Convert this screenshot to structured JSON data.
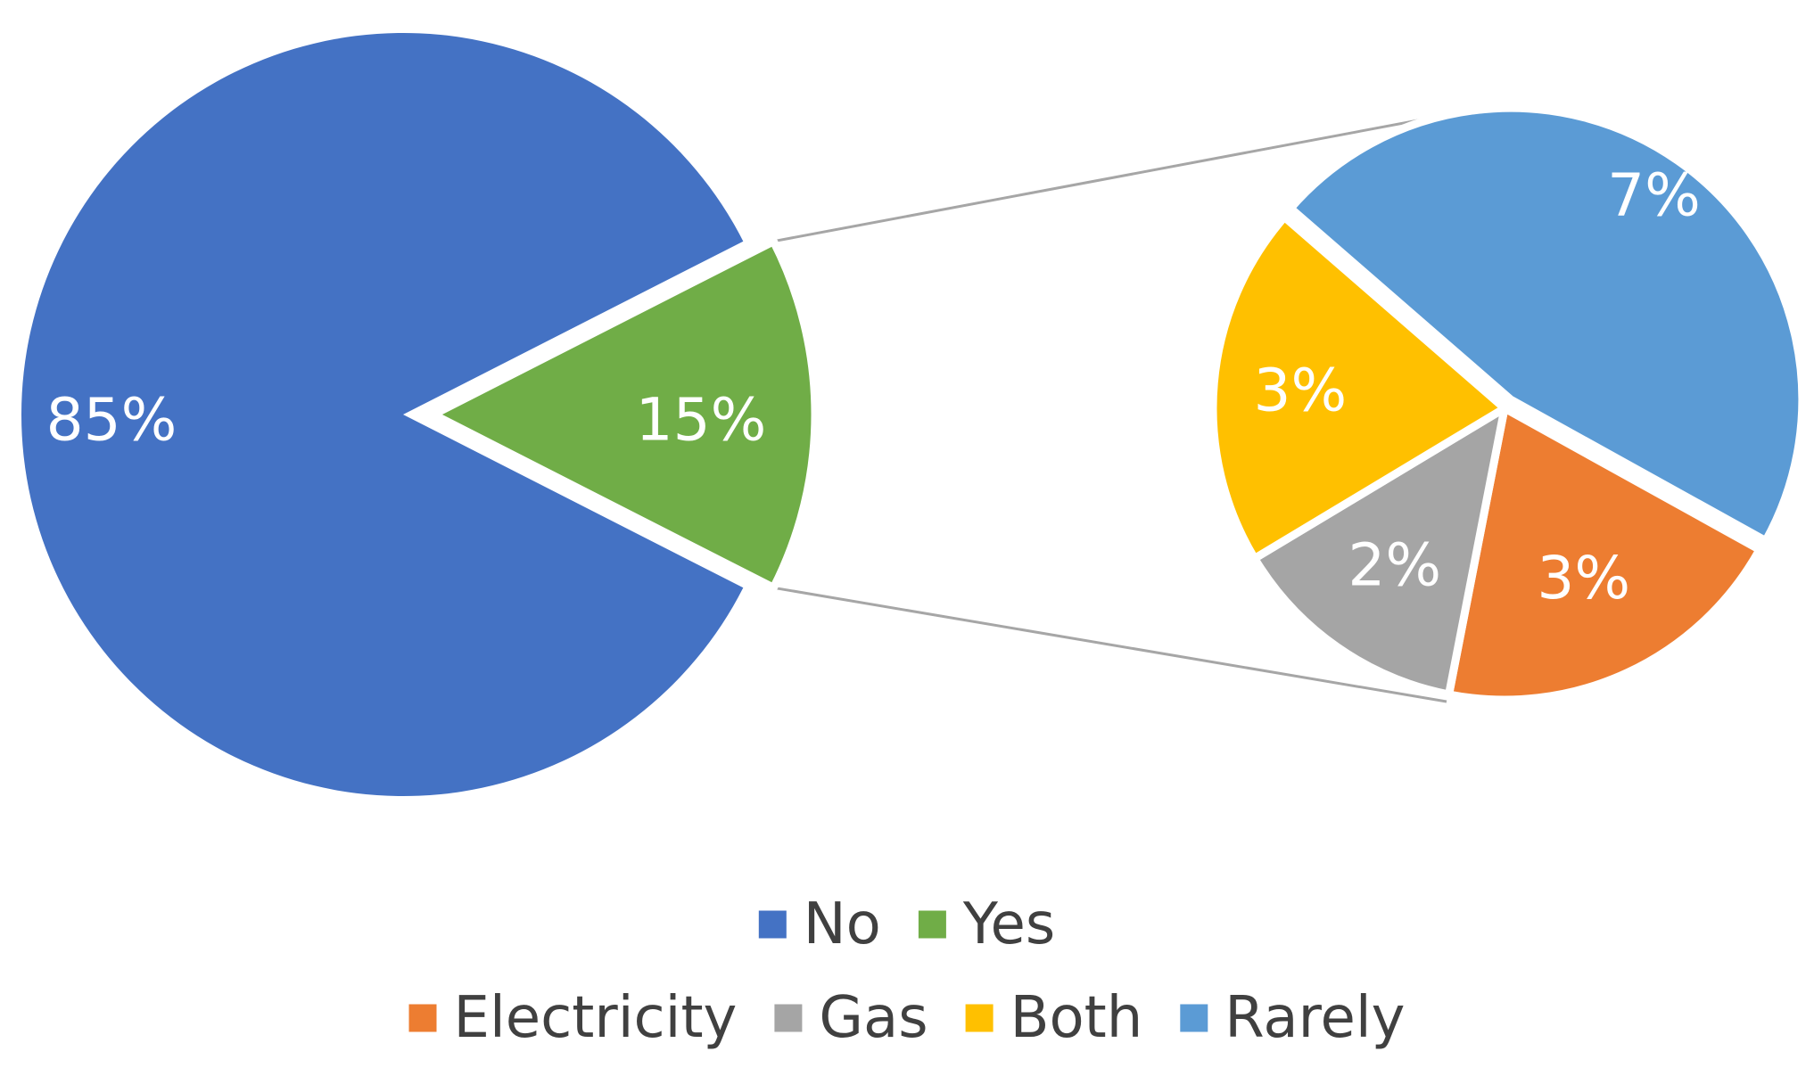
{
  "chart_data": {
    "type": "pie",
    "subtype": "pie-of-pie",
    "main": {
      "slices": [
        {
          "label": "No",
          "value": 85,
          "display": "85%",
          "color": "#4472C4"
        },
        {
          "label": "Yes",
          "value": 15,
          "display": "15%",
          "color": "#70AD47"
        }
      ]
    },
    "secondary": {
      "breakdown_of": "Yes",
      "slices": [
        {
          "label": "Rarely",
          "value": 7,
          "display": "7%",
          "color": "#5B9BD5"
        },
        {
          "label": "Electricity",
          "value": 3,
          "display": "3%",
          "color": "#ED7D31"
        },
        {
          "label": "Gas",
          "value": 2,
          "display": "2%",
          "color": "#A5A5A5"
        },
        {
          "label": "Both",
          "value": 3,
          "display": "3%",
          "color": "#FFC000"
        }
      ]
    },
    "legend": {
      "position": "bottom",
      "rows": [
        [
          {
            "label": "No",
            "color": "#4472C4"
          },
          {
            "label": "Yes",
            "color": "#70AD47"
          }
        ],
        [
          {
            "label": "Electricity",
            "color": "#ED7D31"
          },
          {
            "label": "Gas",
            "color": "#A5A5A5"
          },
          {
            "label": "Both",
            "color": "#FFC000"
          },
          {
            "label": "Rarely",
            "color": "#5B9BD5"
          }
        ]
      ]
    },
    "connector_color": "#A6A6A6"
  }
}
